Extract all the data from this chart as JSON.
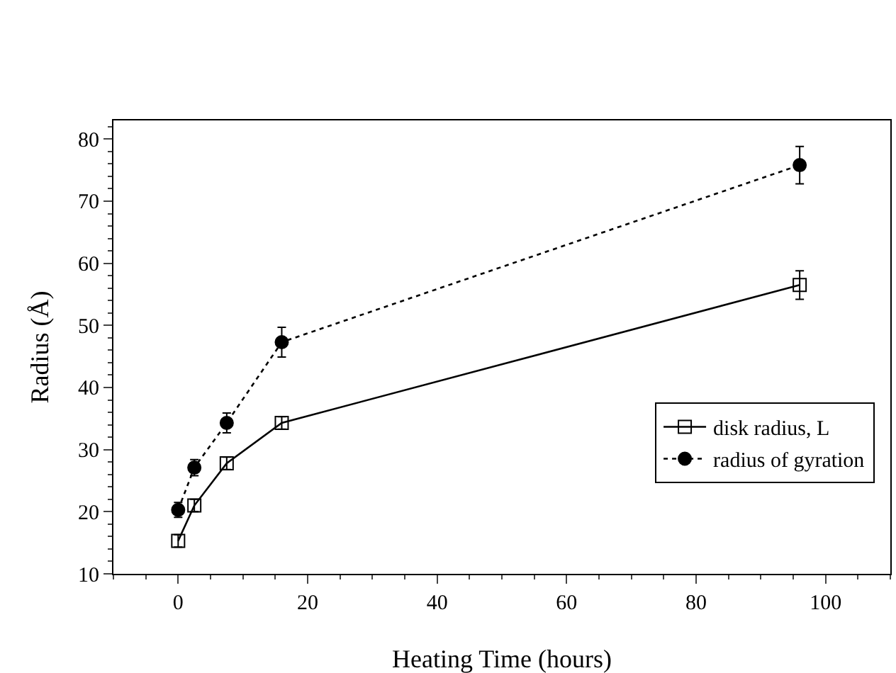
{
  "chart_data": {
    "type": "line",
    "xlabel": "Heating Time (hours)",
    "ylabel": "Radius (Å)",
    "xlim": [
      -10,
      110
    ],
    "xticks": [
      0,
      20,
      40,
      60,
      80,
      100
    ],
    "ylim": [
      10,
      83
    ],
    "yticks": [
      10,
      20,
      30,
      40,
      50,
      60,
      70,
      80
    ],
    "legend": "bottom right",
    "grid": false,
    "series": [
      {
        "name": "disk radius, L",
        "color": "#000000",
        "x": [
          0,
          2.5,
          7.5,
          16,
          96
        ],
        "values": [
          15.3,
          21,
          27.8,
          34.3,
          56.5
        ],
        "errors": [
          1,
          1,
          1,
          1,
          2.3
        ],
        "marker": "square",
        "line_style": "solid"
      },
      {
        "name": "radius of gyration",
        "color": "#000000",
        "x": [
          0,
          2.5,
          7.5,
          16,
          96
        ],
        "values": [
          20.3,
          27.1,
          34.3,
          47.3,
          75.8
        ],
        "errors": [
          1.2,
          1.3,
          1.6,
          2.4,
          3
        ],
        "marker": "circle",
        "line_style": "dotted"
      }
    ]
  }
}
